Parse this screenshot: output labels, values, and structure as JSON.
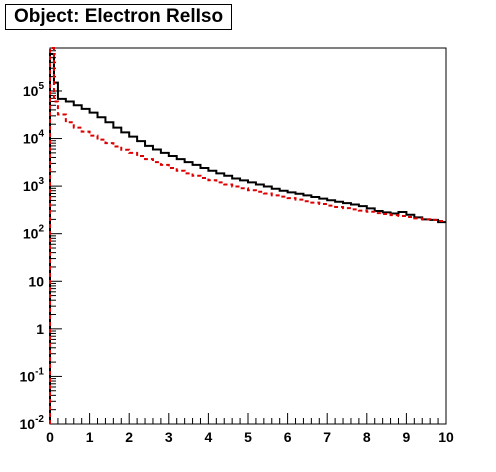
{
  "title": "Object: Electron RelIso",
  "chart_data": {
    "type": "line",
    "title": "Object: Electron RelIso",
    "xlabel": "",
    "ylabel": "",
    "xlim": [
      0,
      10
    ],
    "ylim": [
      0.01,
      800000
    ],
    "y_scale": "log",
    "x_ticks": [
      "0",
      "1",
      "2",
      "3",
      "4",
      "5",
      "6",
      "7",
      "8",
      "9",
      "10"
    ],
    "y_ticks": [
      {
        "value": 0.01,
        "base": "10",
        "exp": "-2"
      },
      {
        "value": 0.1,
        "base": "10",
        "exp": "-1"
      },
      {
        "value": 1,
        "base": "1",
        "exp": ""
      },
      {
        "value": 10,
        "base": "10",
        "exp": ""
      },
      {
        "value": 100,
        "base": "10",
        "exp": "2"
      },
      {
        "value": 1000,
        "base": "10",
        "exp": "3"
      },
      {
        "value": 10000,
        "base": "10",
        "exp": "4"
      },
      {
        "value": 100000,
        "base": "10",
        "exp": "5"
      }
    ],
    "bin_edges": [
      0,
      0.1,
      0.2,
      0.4,
      0.6,
      0.8,
      1.0,
      1.2,
      1.4,
      1.6,
      1.8,
      2.0,
      2.2,
      2.4,
      2.6,
      2.8,
      3.0,
      3.2,
      3.4,
      3.6,
      3.8,
      4.0,
      4.2,
      4.4,
      4.6,
      4.8,
      5.0,
      5.2,
      5.4,
      5.6,
      5.8,
      6.0,
      6.2,
      6.4,
      6.6,
      6.8,
      7.0,
      7.2,
      7.4,
      7.6,
      7.8,
      8.0,
      8.2,
      8.4,
      8.6,
      8.8,
      9.0,
      9.2,
      9.4,
      9.6,
      9.8,
      10.0
    ],
    "grid": false,
    "series": [
      {
        "color": "#000000",
        "style": "solid",
        "values": [
          600000,
          150000,
          68000,
          60000,
          50000,
          42000,
          35000,
          28000,
          22000,
          17000,
          13500,
          11000,
          8800,
          7000,
          5900,
          5000,
          4300,
          3700,
          3200,
          2800,
          2400,
          2100,
          1850,
          1650,
          1450,
          1320,
          1200,
          1080,
          980,
          880,
          800,
          740,
          690,
          640,
          590,
          545,
          505,
          470,
          440,
          410,
          380,
          340,
          300,
          280,
          265,
          285,
          250,
          220,
          200,
          195,
          175
        ]
      },
      {
        "color": "#dd0000",
        "style": "dashed",
        "values": [
          800000,
          60000,
          32000,
          22000,
          17000,
          14000,
          11500,
          9500,
          8000,
          6800,
          5800,
          5000,
          4300,
          3700,
          3200,
          2800,
          2400,
          2100,
          1850,
          1650,
          1480,
          1330,
          1200,
          1080,
          980,
          900,
          820,
          760,
          700,
          640,
          600,
          560,
          520,
          480,
          450,
          420,
          390,
          365,
          345,
          325,
          305,
          290,
          270,
          260,
          245,
          235,
          225,
          210,
          200,
          195,
          185
        ]
      }
    ]
  }
}
